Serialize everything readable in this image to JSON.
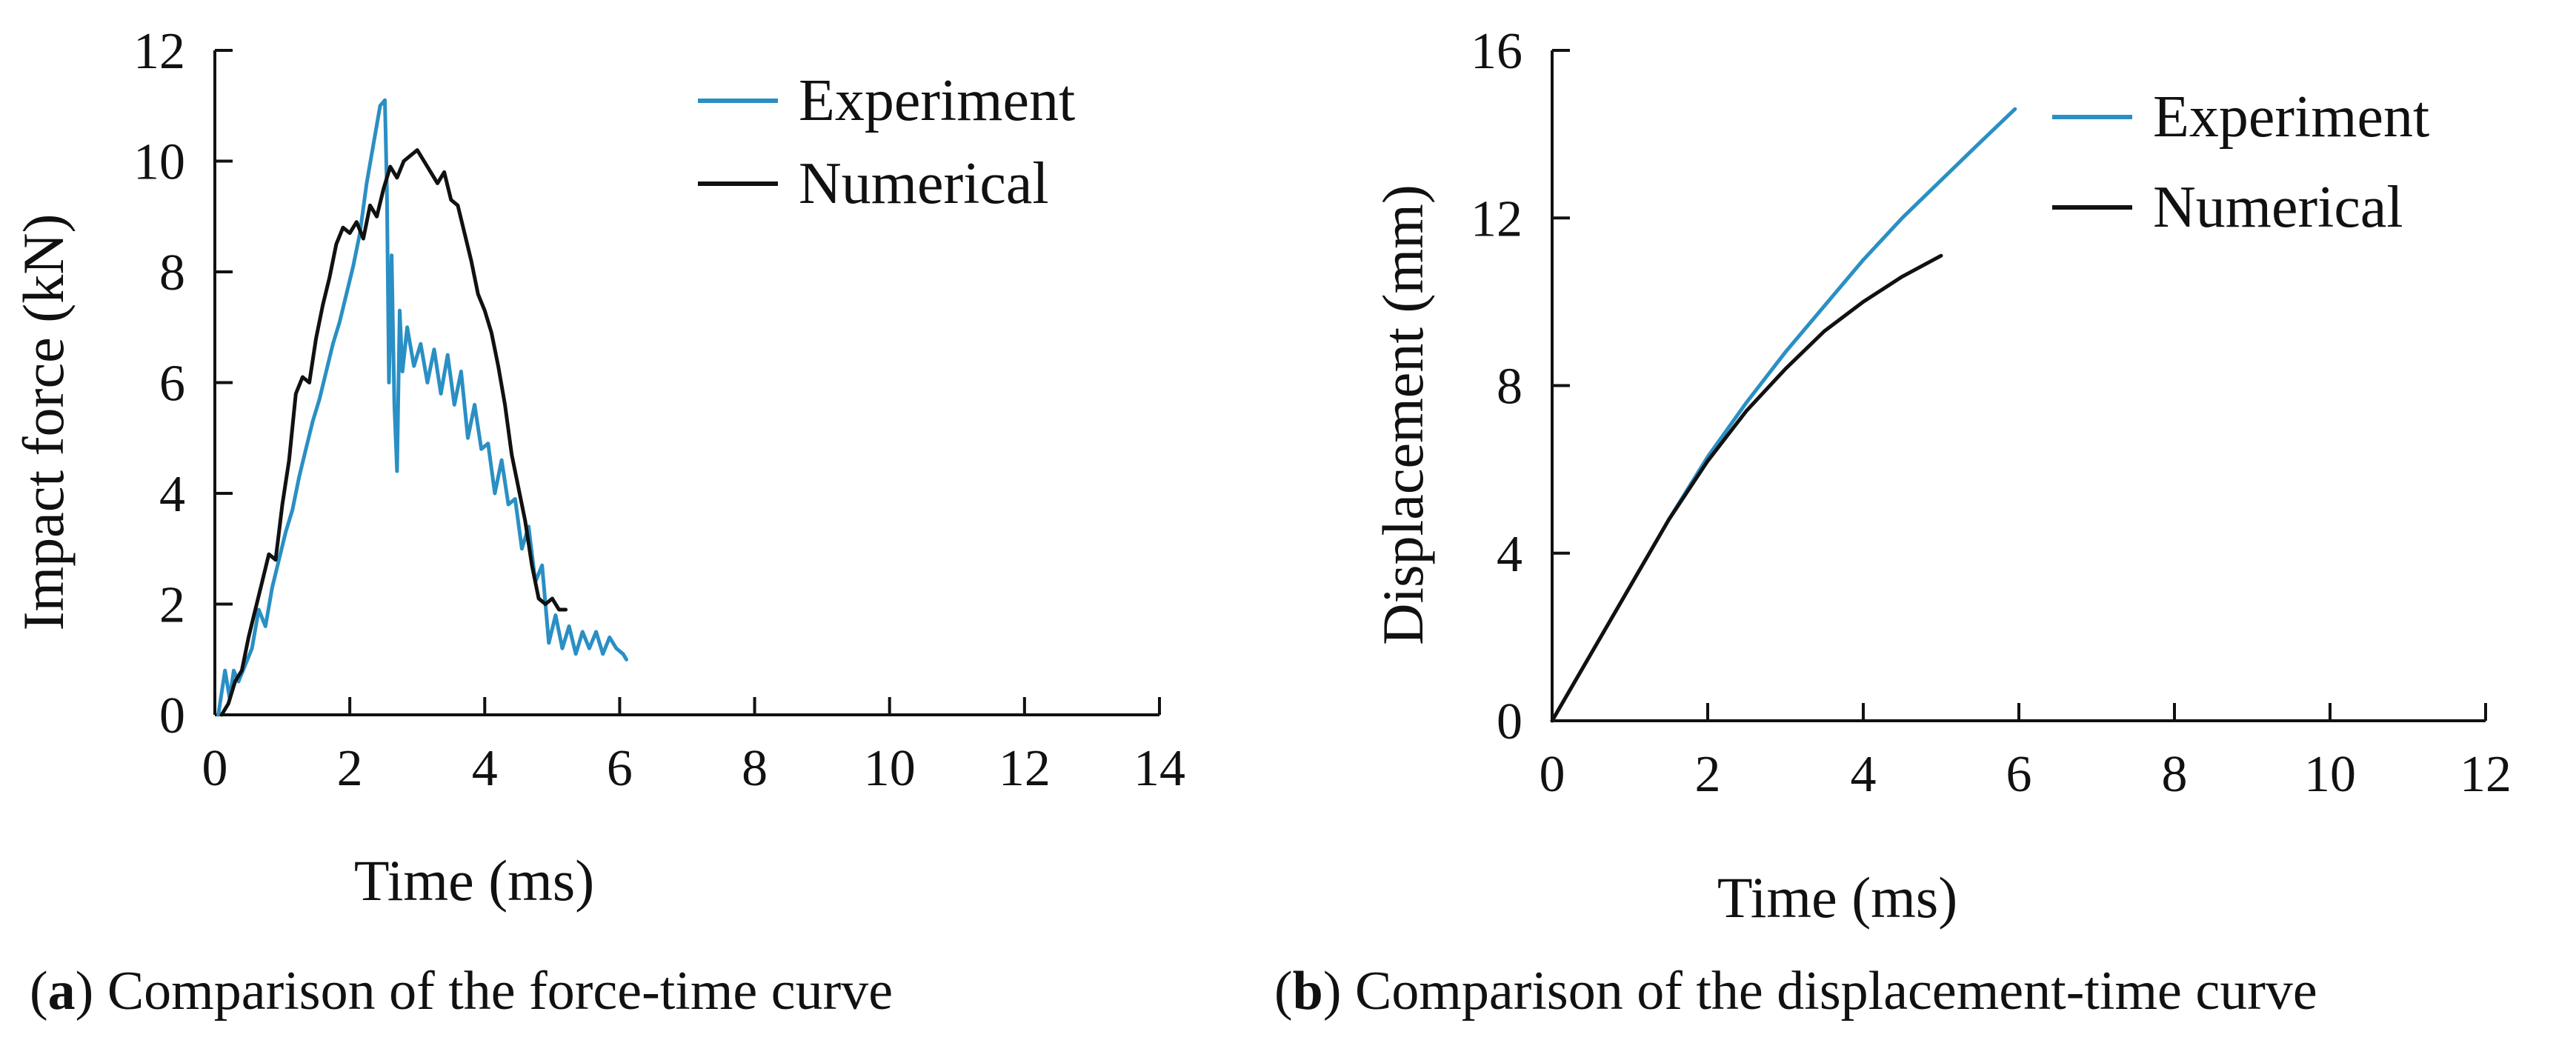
{
  "colors": {
    "experiment": "#2a8fc4",
    "numerical": "#111111",
    "axis": "#111111"
  },
  "chart_data": [
    {
      "id": "a",
      "type": "line",
      "title": "",
      "xlabel": "Time (ms)",
      "ylabel": "Impact force (kN)",
      "xlim": [
        0,
        14
      ],
      "ylim": [
        0,
        12
      ],
      "xticks": [
        0,
        2,
        4,
        6,
        8,
        10,
        12,
        14
      ],
      "yticks": [
        0,
        2,
        4,
        6,
        8,
        10,
        12
      ],
      "xtick_labels": [
        "0",
        "2",
        "4",
        "6",
        "8",
        "10",
        "12",
        "14"
      ],
      "ytick_labels": [
        "0",
        "2",
        "4",
        "6",
        "8",
        "10",
        "12"
      ],
      "legend": [
        "Experiment",
        "Numerical"
      ],
      "legend_position": "top-right",
      "caption_letter": "a",
      "caption_text": "Comparison of the force-time curve",
      "series": [
        {
          "name": "Experiment",
          "color_key": "experiment",
          "x": [
            0.05,
            0.15,
            0.22,
            0.28,
            0.35,
            0.45,
            0.55,
            0.65,
            0.75,
            0.85,
            0.95,
            1.05,
            1.15,
            1.25,
            1.35,
            1.45,
            1.55,
            1.65,
            1.75,
            1.85,
            1.95,
            2.05,
            2.15,
            2.25,
            2.35,
            2.45,
            2.52,
            2.55,
            2.58,
            2.62,
            2.66,
            2.7,
            2.74,
            2.78,
            2.85,
            2.95,
            3.05,
            3.15,
            3.25,
            3.35,
            3.45,
            3.55,
            3.65,
            3.75,
            3.85,
            3.95,
            4.05,
            4.15,
            4.25,
            4.35,
            4.45,
            4.55,
            4.65,
            4.75,
            4.85,
            4.95,
            5.05,
            5.15,
            5.25,
            5.35,
            5.45,
            5.55,
            5.65,
            5.75,
            5.85,
            5.95,
            6.05,
            6.1
          ],
          "y": [
            0.0,
            0.8,
            0.3,
            0.8,
            0.6,
            0.9,
            1.2,
            1.9,
            1.6,
            2.3,
            2.8,
            3.3,
            3.7,
            4.3,
            4.8,
            5.3,
            5.7,
            6.2,
            6.7,
            7.1,
            7.6,
            8.1,
            8.7,
            9.6,
            10.3,
            11.0,
            11.1,
            9.5,
            6.0,
            8.3,
            5.6,
            4.4,
            7.3,
            6.2,
            7.0,
            6.3,
            6.7,
            6.0,
            6.6,
            5.8,
            6.5,
            5.6,
            6.2,
            5.0,
            5.6,
            4.8,
            4.9,
            4.0,
            4.6,
            3.8,
            3.9,
            3.0,
            3.4,
            2.4,
            2.7,
            1.3,
            1.8,
            1.2,
            1.6,
            1.1,
            1.5,
            1.2,
            1.5,
            1.1,
            1.4,
            1.2,
            1.1,
            1.0
          ]
        },
        {
          "name": "Numerical",
          "color_key": "numerical",
          "x": [
            0.1,
            0.2,
            0.3,
            0.4,
            0.5,
            0.6,
            0.7,
            0.8,
            0.9,
            1.0,
            1.1,
            1.2,
            1.3,
            1.4,
            1.5,
            1.6,
            1.7,
            1.8,
            1.9,
            2.0,
            2.1,
            2.2,
            2.3,
            2.4,
            2.5,
            2.6,
            2.7,
            2.8,
            2.9,
            3.0,
            3.1,
            3.2,
            3.3,
            3.4,
            3.5,
            3.6,
            3.7,
            3.8,
            3.9,
            4.0,
            4.1,
            4.2,
            4.3,
            4.4,
            4.5,
            4.6,
            4.7,
            4.8,
            4.9,
            5.0,
            5.1,
            5.2
          ],
          "y": [
            0.0,
            0.2,
            0.6,
            0.8,
            1.4,
            1.9,
            2.4,
            2.9,
            2.8,
            3.8,
            4.6,
            5.8,
            6.1,
            6.0,
            6.8,
            7.4,
            7.9,
            8.5,
            8.8,
            8.7,
            8.9,
            8.6,
            9.2,
            9.0,
            9.5,
            9.9,
            9.7,
            10.0,
            10.1,
            10.2,
            10.0,
            9.8,
            9.6,
            9.8,
            9.3,
            9.2,
            8.7,
            8.2,
            7.6,
            7.3,
            6.9,
            6.3,
            5.6,
            4.7,
            4.1,
            3.5,
            2.7,
            2.1,
            2.0,
            2.1,
            1.9,
            1.9
          ]
        }
      ]
    },
    {
      "id": "b",
      "type": "line",
      "title": "",
      "xlabel": "Time (ms)",
      "ylabel": "Displacement (mm)",
      "xlim": [
        0,
        12
      ],
      "ylim": [
        0,
        16
      ],
      "xticks": [
        0,
        2,
        4,
        6,
        8,
        10,
        12
      ],
      "yticks": [
        0,
        4,
        8,
        12,
        16
      ],
      "xtick_labels": [
        "0",
        "2",
        "4",
        "6",
        "8",
        "10",
        "12"
      ],
      "ytick_labels": [
        "0",
        "4",
        "8",
        "12",
        "16"
      ],
      "legend": [
        "Experiment",
        "Numerical"
      ],
      "legend_position": "top-right",
      "caption_letter": "b",
      "caption_text": "Comparison of the displacement-time curve",
      "series": [
        {
          "name": "Experiment",
          "color_key": "experiment",
          "x": [
            0,
            0.5,
            1.0,
            1.5,
            2.0,
            2.5,
            3.0,
            3.5,
            4.0,
            4.5,
            5.0,
            5.5,
            5.95
          ],
          "y": [
            0,
            1.6,
            3.2,
            4.8,
            6.3,
            7.6,
            8.8,
            9.9,
            11.0,
            12.0,
            12.9,
            13.8,
            14.6
          ]
        },
        {
          "name": "Numerical",
          "color_key": "numerical",
          "x": [
            0,
            0.5,
            1.0,
            1.5,
            2.0,
            2.5,
            3.0,
            3.5,
            4.0,
            4.5,
            5.0
          ],
          "y": [
            0,
            1.6,
            3.2,
            4.8,
            6.2,
            7.4,
            8.4,
            9.3,
            10.0,
            10.6,
            11.1
          ]
        }
      ]
    }
  ]
}
